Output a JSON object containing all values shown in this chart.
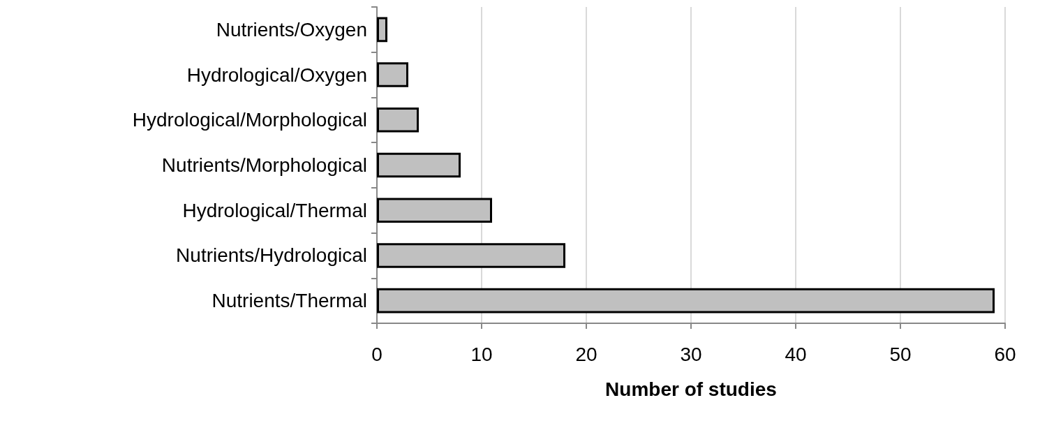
{
  "chart_data": {
    "type": "bar",
    "orientation": "horizontal",
    "xlabel": "Number of studies",
    "categories": [
      "Nutrients/Oxygen",
      "Hydrological/Oxygen",
      "Hydrological/Morphological",
      "Nutrients/Morphological",
      "Hydrological/Thermal",
      "Nutrients/Hydrological",
      "Nutrients/Thermal"
    ],
    "values": [
      1,
      3,
      4,
      8,
      11,
      18,
      59
    ],
    "color": "#c0c0c0",
    "xlim": [
      0,
      60
    ],
    "xticks": [
      0,
      10,
      20,
      30,
      40,
      50,
      60
    ],
    "grid": "x"
  }
}
